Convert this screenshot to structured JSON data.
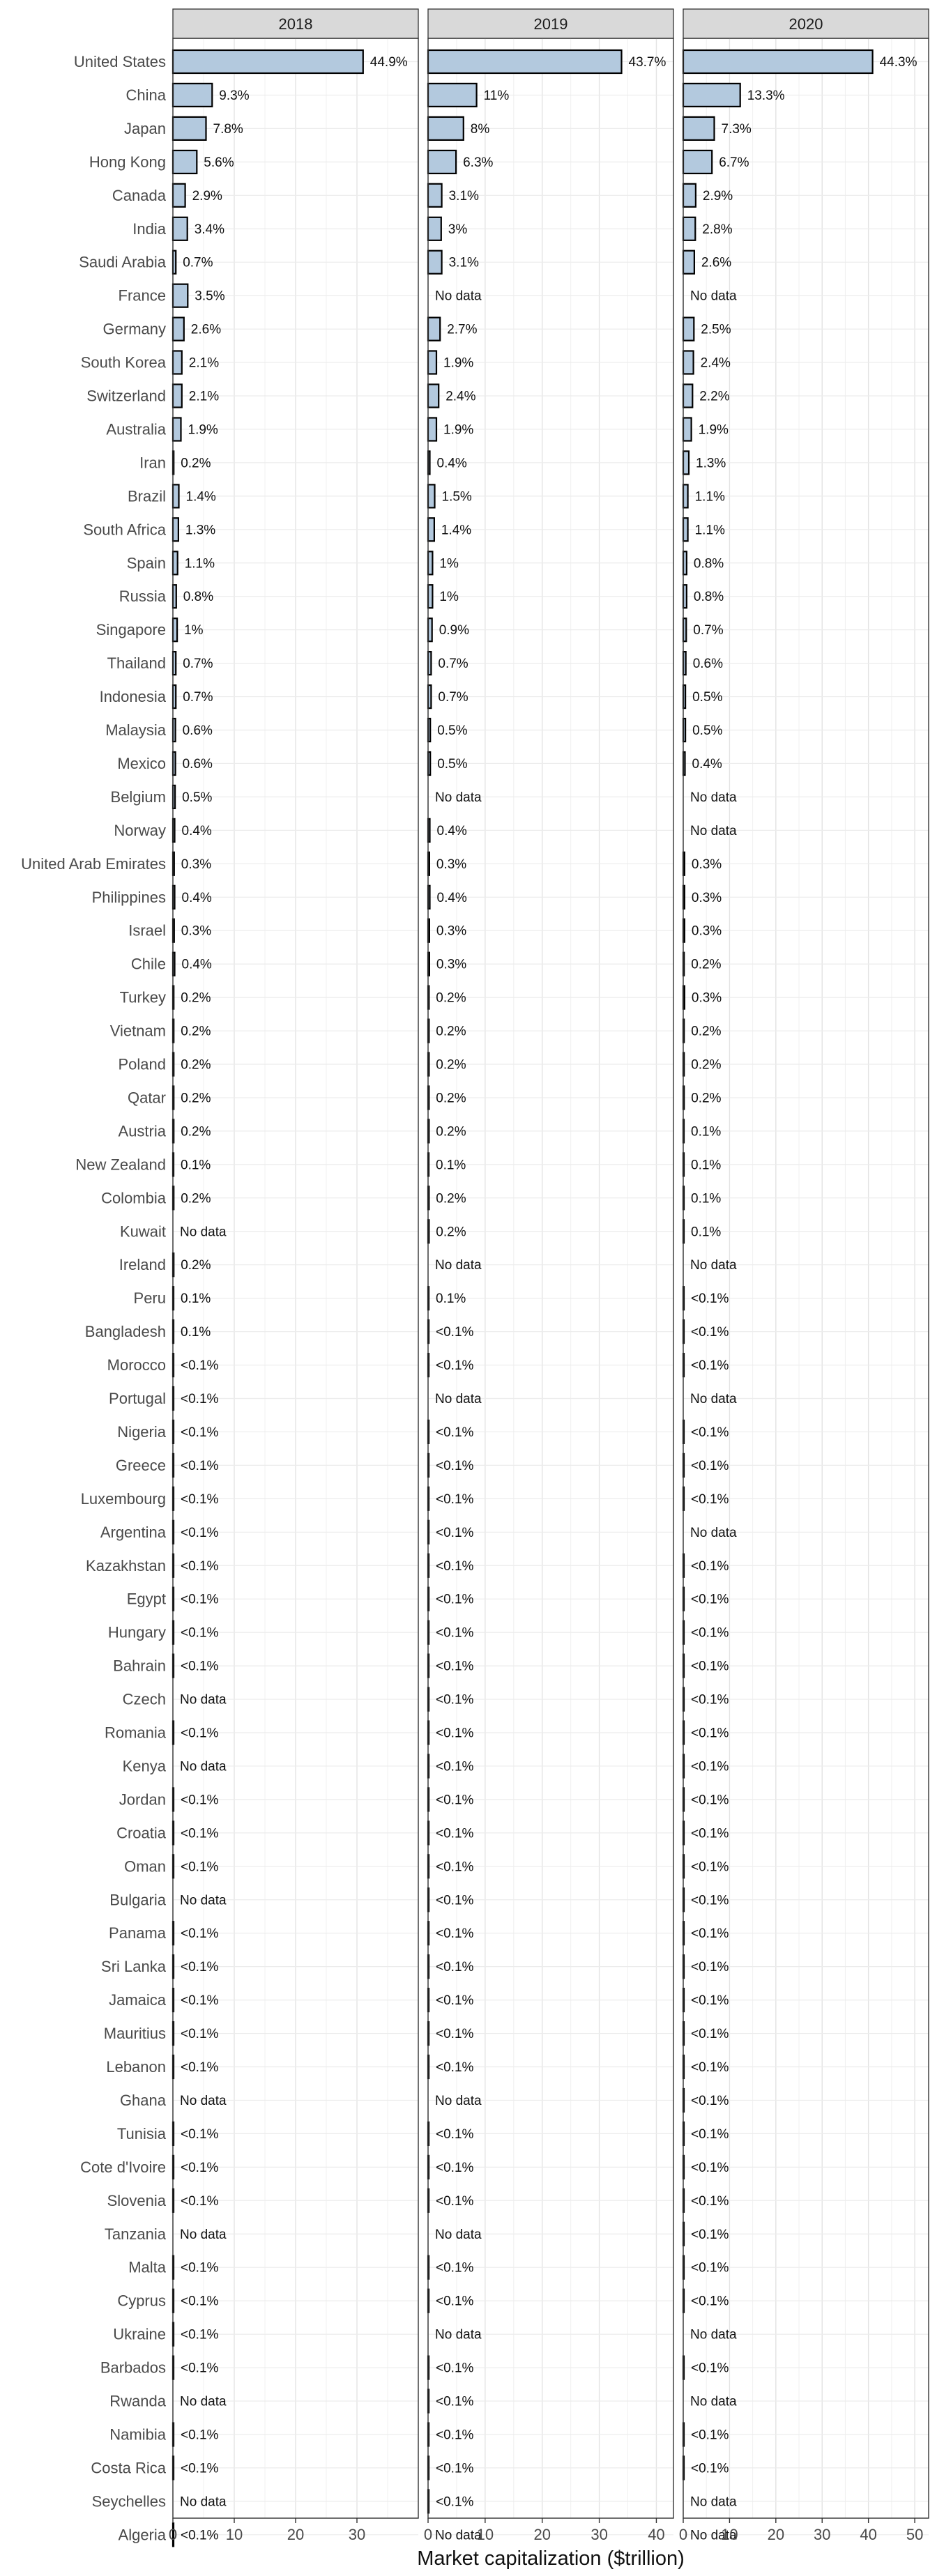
{
  "chart_data": {
    "type": "bar",
    "orientation": "horizontal",
    "xlabel": "Market capitalization ($trillion)",
    "ylabel": "",
    "grid": true,
    "bar_color": "#b3c9de",
    "bar_outline": "#000000",
    "categories": [
      "United States",
      "China",
      "Japan",
      "Hong Kong",
      "Canada",
      "India",
      "Saudi Arabia",
      "France",
      "Germany",
      "South Korea",
      "Switzerland",
      "Australia",
      "Iran",
      "Brazil",
      "South Africa",
      "Spain",
      "Russia",
      "Singapore",
      "Thailand",
      "Indonesia",
      "Malaysia",
      "Mexico",
      "Belgium",
      "Norway",
      "United Arab Emirates",
      "Philippines",
      "Israel",
      "Chile",
      "Turkey",
      "Vietnam",
      "Poland",
      "Qatar",
      "Austria",
      "New Zealand",
      "Colombia",
      "Kuwait",
      "Ireland",
      "Peru",
      "Bangladesh",
      "Morocco",
      "Portugal",
      "Nigeria",
      "Greece",
      "Luxembourg",
      "Argentina",
      "Kazakhstan",
      "Egypt",
      "Hungary",
      "Bahrain",
      "Czech",
      "Romania",
      "Kenya",
      "Jordan",
      "Croatia",
      "Oman",
      "Bulgaria",
      "Panama",
      "Sri Lanka",
      "Jamaica",
      "Mauritius",
      "Lebanon",
      "Ghana",
      "Tunisia",
      "Cote d'Ivoire",
      "Slovenia",
      "Tanzania",
      "Malta",
      "Cyprus",
      "Ukraine",
      "Barbados",
      "Rwanda",
      "Namibia",
      "Costa Rica",
      "Seychelles",
      "Algeria"
    ],
    "panels": [
      {
        "name": "2018",
        "xlim": [
          0,
          40
        ],
        "xticks": [
          0,
          10,
          20,
          30
        ],
        "values": [
          31.0,
          6.4,
          5.4,
          3.9,
          2.0,
          2.35,
          0.48,
          2.42,
          1.8,
          1.45,
          1.45,
          1.31,
          0.14,
          0.97,
          0.9,
          0.76,
          0.55,
          0.69,
          0.48,
          0.48,
          0.41,
          0.41,
          0.35,
          0.28,
          0.21,
          0.28,
          0.21,
          0.28,
          0.14,
          0.14,
          0.14,
          0.14,
          0.14,
          0.07,
          0.14,
          null,
          0.14,
          0.07,
          0.07,
          0.03,
          0.03,
          0.03,
          0.03,
          0.03,
          0.03,
          0.03,
          0.03,
          0.03,
          0.03,
          null,
          0.03,
          null,
          0.03,
          0.03,
          0.03,
          null,
          0.03,
          0.03,
          0.03,
          0.03,
          0.03,
          null,
          0.03,
          0.03,
          0.03,
          null,
          0.03,
          0.03,
          0.03,
          0.03,
          null,
          0.03,
          0.03,
          null,
          0.03
        ],
        "labels": [
          "44.9%",
          "9.3%",
          "7.8%",
          "5.6%",
          "2.9%",
          "3.4%",
          "0.7%",
          "3.5%",
          "2.6%",
          "2.1%",
          "2.1%",
          "1.9%",
          "0.2%",
          "1.4%",
          "1.3%",
          "1.1%",
          "0.8%",
          "1%",
          "0.7%",
          "0.7%",
          "0.6%",
          "0.6%",
          "0.5%",
          "0.4%",
          "0.3%",
          "0.4%",
          "0.3%",
          "0.4%",
          "0.2%",
          "0.2%",
          "0.2%",
          "0.2%",
          "0.2%",
          "0.1%",
          "0.2%",
          "No data",
          "0.2%",
          "0.1%",
          "0.1%",
          "<0.1%",
          "<0.1%",
          "<0.1%",
          "<0.1%",
          "<0.1%",
          "<0.1%",
          "<0.1%",
          "<0.1%",
          "<0.1%",
          "<0.1%",
          "No data",
          "<0.1%",
          "No data",
          "<0.1%",
          "<0.1%",
          "<0.1%",
          "No data",
          "<0.1%",
          "<0.1%",
          "<0.1%",
          "<0.1%",
          "<0.1%",
          "No data",
          "<0.1%",
          "<0.1%",
          "<0.1%",
          "No data",
          "<0.1%",
          "<0.1%",
          "<0.1%",
          "<0.1%",
          "No data",
          "<0.1%",
          "<0.1%",
          "No data",
          "<0.1%"
        ]
      },
      {
        "name": "2019",
        "xlim": [
          0,
          43
        ],
        "xticks": [
          0,
          10,
          20,
          30,
          40
        ],
        "values": [
          33.9,
          8.5,
          6.2,
          4.9,
          2.4,
          2.3,
          2.4,
          null,
          2.1,
          1.47,
          1.86,
          1.47,
          0.31,
          1.16,
          1.09,
          0.78,
          0.78,
          0.7,
          0.54,
          0.54,
          0.39,
          0.39,
          null,
          0.31,
          0.23,
          0.31,
          0.23,
          0.23,
          0.16,
          0.16,
          0.16,
          0.16,
          0.16,
          0.08,
          0.16,
          0.16,
          null,
          0.08,
          0.04,
          0.04,
          null,
          0.04,
          0.04,
          0.04,
          0.04,
          0.04,
          0.04,
          0.04,
          0.04,
          0.04,
          0.04,
          0.04,
          0.04,
          0.04,
          0.04,
          0.04,
          0.04,
          0.04,
          0.04,
          0.04,
          0.04,
          null,
          0.04,
          0.04,
          0.04,
          null,
          0.04,
          0.04,
          null,
          0.04,
          0.04,
          0.04,
          0.04,
          0.04,
          null
        ],
        "labels": [
          "43.7%",
          "11%",
          "8%",
          "6.3%",
          "3.1%",
          "3%",
          "3.1%",
          "No data",
          "2.7%",
          "1.9%",
          "2.4%",
          "1.9%",
          "0.4%",
          "1.5%",
          "1.4%",
          "1%",
          "1%",
          "0.9%",
          "0.7%",
          "0.7%",
          "0.5%",
          "0.5%",
          "No data",
          "0.4%",
          "0.3%",
          "0.4%",
          "0.3%",
          "0.3%",
          "0.2%",
          "0.2%",
          "0.2%",
          "0.2%",
          "0.2%",
          "0.1%",
          "0.2%",
          "0.2%",
          "No data",
          "0.1%",
          "<0.1%",
          "<0.1%",
          "No data",
          "<0.1%",
          "<0.1%",
          "<0.1%",
          "<0.1%",
          "<0.1%",
          "<0.1%",
          "<0.1%",
          "<0.1%",
          "<0.1%",
          "<0.1%",
          "<0.1%",
          "<0.1%",
          "<0.1%",
          "<0.1%",
          "<0.1%",
          "<0.1%",
          "<0.1%",
          "<0.1%",
          "<0.1%",
          "<0.1%",
          "No data",
          "<0.1%",
          "<0.1%",
          "<0.1%",
          "No data",
          "<0.1%",
          "<0.1%",
          "No data",
          "<0.1%",
          "<0.1%",
          "<0.1%",
          "<0.1%",
          "<0.1%",
          "No data"
        ]
      },
      {
        "name": "2020",
        "xlim": [
          0,
          53
        ],
        "xticks": [
          0,
          10,
          20,
          30,
          40,
          50
        ],
        "values": [
          40.9,
          12.3,
          6.7,
          6.2,
          2.7,
          2.6,
          2.4,
          null,
          2.3,
          2.2,
          2.0,
          1.75,
          1.2,
          1.0,
          1.0,
          0.74,
          0.74,
          0.65,
          0.55,
          0.46,
          0.46,
          0.37,
          null,
          null,
          0.28,
          0.28,
          0.28,
          0.18,
          0.28,
          0.18,
          0.18,
          0.18,
          0.09,
          0.09,
          0.09,
          0.09,
          null,
          0.05,
          0.05,
          0.05,
          null,
          0.05,
          0.05,
          0.05,
          null,
          0.05,
          0.05,
          0.05,
          0.05,
          0.05,
          0.05,
          0.05,
          0.05,
          0.05,
          0.05,
          0.05,
          0.05,
          0.05,
          0.05,
          0.05,
          0.05,
          0.05,
          0.05,
          0.05,
          0.05,
          0.05,
          0.05,
          0.05,
          null,
          0.05,
          null,
          0.05,
          0.05,
          null,
          null
        ],
        "labels": [
          "44.3%",
          "13.3%",
          "7.3%",
          "6.7%",
          "2.9%",
          "2.8%",
          "2.6%",
          "No data",
          "2.5%",
          "2.4%",
          "2.2%",
          "1.9%",
          "1.3%",
          "1.1%",
          "1.1%",
          "0.8%",
          "0.8%",
          "0.7%",
          "0.6%",
          "0.5%",
          "0.5%",
          "0.4%",
          "No data",
          "No data",
          "0.3%",
          "0.3%",
          "0.3%",
          "0.2%",
          "0.3%",
          "0.2%",
          "0.2%",
          "0.2%",
          "0.1%",
          "0.1%",
          "0.1%",
          "0.1%",
          "No data",
          "<0.1%",
          "<0.1%",
          "<0.1%",
          "No data",
          "<0.1%",
          "<0.1%",
          "<0.1%",
          "No data",
          "<0.1%",
          "<0.1%",
          "<0.1%",
          "<0.1%",
          "<0.1%",
          "<0.1%",
          "<0.1%",
          "<0.1%",
          "<0.1%",
          "<0.1%",
          "<0.1%",
          "<0.1%",
          "<0.1%",
          "<0.1%",
          "<0.1%",
          "<0.1%",
          "<0.1%",
          "<0.1%",
          "<0.1%",
          "<0.1%",
          "<0.1%",
          "<0.1%",
          "<0.1%",
          "No data",
          "<0.1%",
          "No data",
          "<0.1%",
          "<0.1%",
          "No data",
          "No data"
        ]
      }
    ]
  }
}
